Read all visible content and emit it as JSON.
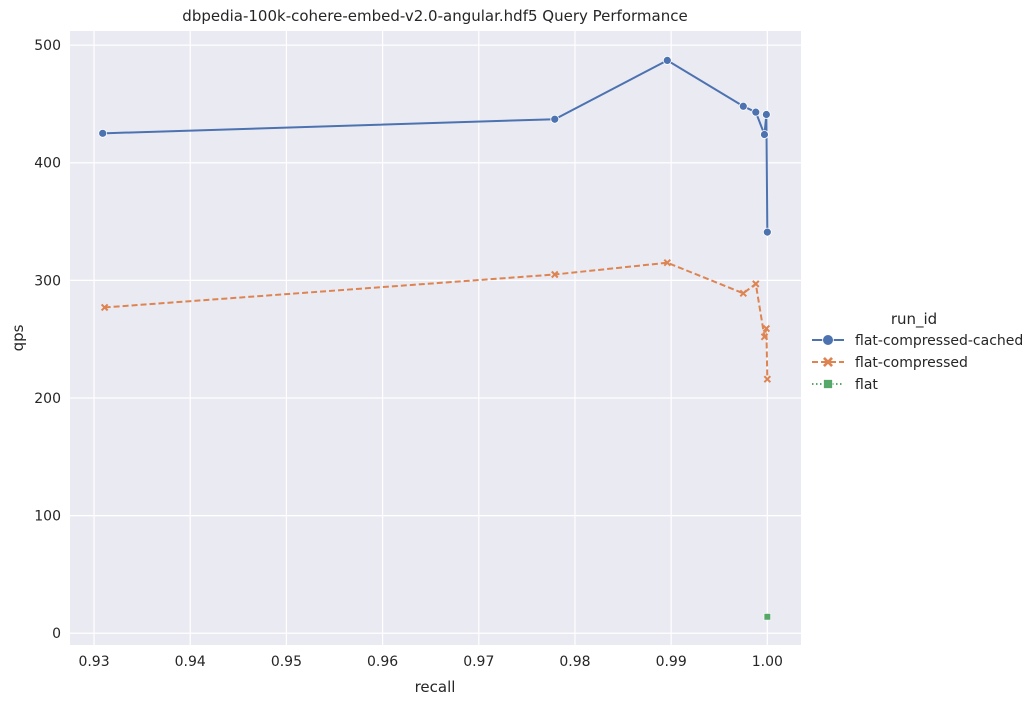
{
  "chart_data": {
    "type": "line",
    "title": "dbpedia-100k-cohere-embed-v2.0-angular.hdf5 Query Performance",
    "xlabel": "recall",
    "ylabel": "qps",
    "xlim": [
      0.9275,
      1.0035
    ],
    "ylim": [
      -10,
      512
    ],
    "xticks": [
      "0.93",
      "0.94",
      "0.95",
      "0.96",
      "0.97",
      "0.98",
      "0.99",
      "1.00"
    ],
    "yticks": [
      "0",
      "100",
      "200",
      "300",
      "400",
      "500"
    ],
    "grid": true,
    "background": "#eaeaf2",
    "legend": {
      "title": "run_id",
      "placement": "right"
    },
    "series": [
      {
        "name": "flat-compressed-cached",
        "color": "#4c72b0",
        "marker": "circle",
        "linestyle": "solid",
        "points": [
          [
            0.9309,
            425
          ],
          [
            0.9779,
            437
          ],
          [
            0.9896,
            487
          ],
          [
            0.9975,
            448
          ],
          [
            0.9988,
            443
          ],
          [
            0.9997,
            424
          ],
          [
            0.9999,
            441
          ],
          [
            1.0,
            341
          ]
        ]
      },
      {
        "name": "flat-compressed",
        "color": "#dd8452",
        "marker": "x",
        "linestyle": "dashed",
        "points": [
          [
            0.9311,
            277
          ],
          [
            0.9779,
            305
          ],
          [
            0.9896,
            315
          ],
          [
            0.9975,
            289
          ],
          [
            0.9988,
            297
          ],
          [
            0.9997,
            252
          ],
          [
            0.9999,
            259
          ],
          [
            1.0,
            216
          ]
        ]
      },
      {
        "name": "flat",
        "color": "#55a868",
        "marker": "square",
        "linestyle": "dotted",
        "points": [
          [
            1.0,
            14
          ]
        ]
      }
    ]
  }
}
